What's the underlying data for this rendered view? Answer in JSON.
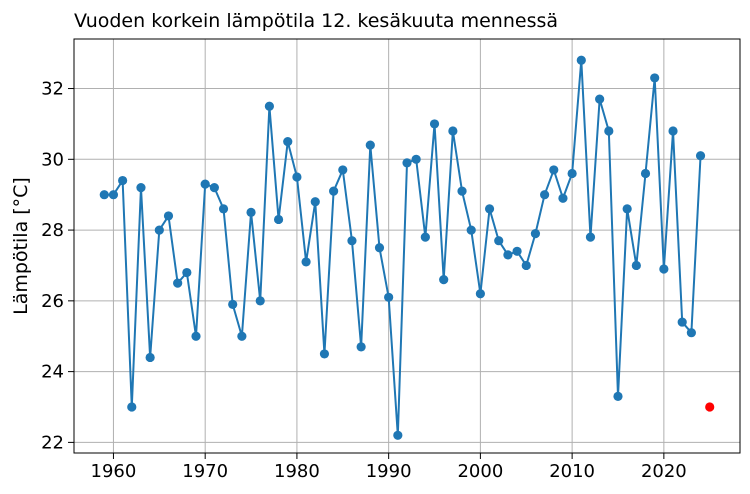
{
  "chart_data": {
    "type": "line",
    "title": "Vuoden korkein lämpötila 12. kesäkuuta mennessä",
    "xlabel": "",
    "ylabel": "Lämpötila [°C]",
    "xlim": [
      1955.7,
      2028.3
    ],
    "ylim": [
      21.7,
      33.4
    ],
    "xticks": [
      1960,
      1970,
      1980,
      1990,
      2000,
      2010,
      2020
    ],
    "yticks": [
      22,
      24,
      26,
      28,
      30,
      32
    ],
    "grid": true,
    "colors": {
      "series": "#1f77b4",
      "highlight": "#ff0000"
    },
    "series": [
      {
        "x": [
          1959,
          1960,
          1961,
          1962,
          1963,
          1964,
          1965,
          1966,
          1967,
          1968,
          1969,
          1970,
          1971,
          1972,
          1973,
          1974,
          1975,
          1976,
          1977,
          1978,
          1979,
          1980,
          1981,
          1982,
          1983,
          1984,
          1985,
          1986,
          1987,
          1988,
          1989,
          1990,
          1991,
          1992,
          1993,
          1994,
          1995,
          1996,
          1997,
          1998,
          1999,
          2000,
          2001,
          2002,
          2003,
          2004,
          2005,
          2006,
          2007,
          2008,
          2009,
          2010,
          2011,
          2012,
          2013,
          2014,
          2015,
          2016,
          2017,
          2018,
          2019,
          2020,
          2021,
          2022,
          2023,
          2024
        ],
        "y": [
          29.0,
          29.0,
          29.4,
          23.0,
          29.2,
          24.4,
          28.0,
          28.4,
          26.5,
          26.8,
          25.0,
          29.3,
          29.2,
          28.6,
          25.9,
          25.0,
          28.5,
          26.0,
          31.5,
          28.3,
          30.5,
          29.5,
          27.1,
          28.8,
          24.5,
          29.1,
          29.7,
          27.7,
          24.7,
          30.4,
          27.5,
          26.1,
          22.2,
          29.9,
          30.0,
          27.8,
          31.0,
          26.6,
          30.8,
          29.1,
          28.0,
          26.2,
          28.6,
          27.7,
          27.3,
          27.4,
          27.0,
          27.9,
          29.0,
          29.7,
          28.9,
          29.6,
          32.8,
          27.8,
          31.7,
          30.8,
          23.3,
          28.6,
          27.0,
          29.6,
          32.3,
          26.9,
          30.8,
          25.4,
          25.1,
          30.1
        ]
      }
    ],
    "highlight_point": {
      "x": 2025,
      "y": 23.0
    }
  }
}
